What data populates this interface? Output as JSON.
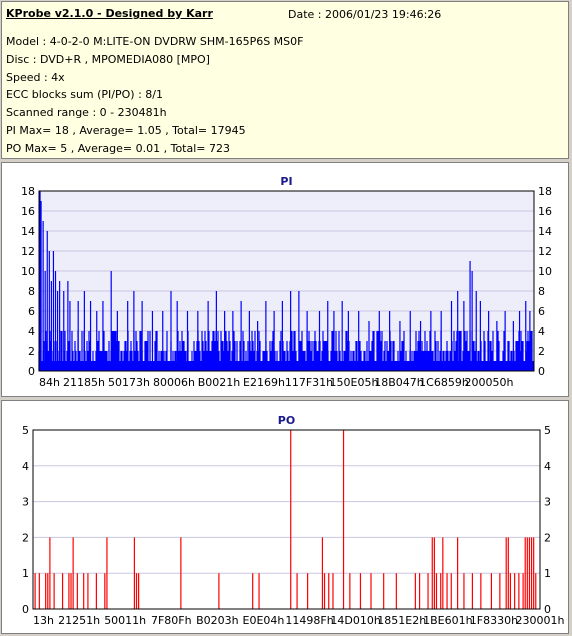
{
  "info": {
    "title": "KProbe v2.1.0 - Designed by Karr",
    "date": "Date : 2006/01/23 19:46:26",
    "lines": [
      "Model : 4-0-2-0 M:LITE-ON DVDRW SHM-165P6S MS0F",
      "Disc : DVD+R , MPOMEDIA080 [MPO]",
      "Speed : 4x",
      "ECC blocks sum (PI/PO) : 8/1",
      "Scanned range : 0 - 230481h",
      "PI Max= 18 , Average= 1.05 , Total= 17945",
      "PO Max= 5 , Average= 0.01 , Total= 723"
    ]
  },
  "chart_data": [
    {
      "type": "bar",
      "title": "PI",
      "color": "#0000ff",
      "background": "#eeeefa",
      "ylim": [
        0,
        18
      ],
      "yticks": [
        0,
        2,
        4,
        6,
        8,
        10,
        12,
        14,
        16,
        18
      ],
      "xticks": [
        "84h",
        "21185h",
        "50173h",
        "80006h",
        "B0021h",
        "E2169h",
        "117F31h",
        "150E05h",
        "18B047h",
        "1C6859h",
        "200050h"
      ],
      "xlim": [
        0,
        240
      ],
      "grid": true,
      "baseline": "dense, roughly 1-4",
      "spikes": [
        {
          "x": 0.5,
          "y": 18
        },
        {
          "x": 1,
          "y": 17
        },
        {
          "x": 2,
          "y": 15
        },
        {
          "x": 3,
          "y": 10
        },
        {
          "x": 4,
          "y": 14
        },
        {
          "x": 5,
          "y": 12
        },
        {
          "x": 6,
          "y": 9
        },
        {
          "x": 7,
          "y": 12
        },
        {
          "x": 8,
          "y": 10
        },
        {
          "x": 9,
          "y": 8
        },
        {
          "x": 10,
          "y": 9
        },
        {
          "x": 12,
          "y": 8
        },
        {
          "x": 14,
          "y": 9
        },
        {
          "x": 15,
          "y": 7
        },
        {
          "x": 19,
          "y": 7
        },
        {
          "x": 22,
          "y": 8
        },
        {
          "x": 25,
          "y": 7
        },
        {
          "x": 28,
          "y": 6
        },
        {
          "x": 31,
          "y": 7
        },
        {
          "x": 35,
          "y": 10
        },
        {
          "x": 38,
          "y": 6
        },
        {
          "x": 43,
          "y": 7
        },
        {
          "x": 46,
          "y": 8
        },
        {
          "x": 50,
          "y": 7
        },
        {
          "x": 55,
          "y": 6
        },
        {
          "x": 60,
          "y": 6
        },
        {
          "x": 64,
          "y": 8
        },
        {
          "x": 67,
          "y": 7
        },
        {
          "x": 72,
          "y": 6
        },
        {
          "x": 77,
          "y": 6
        },
        {
          "x": 82,
          "y": 7
        },
        {
          "x": 86,
          "y": 8
        },
        {
          "x": 90,
          "y": 6
        },
        {
          "x": 94,
          "y": 6
        },
        {
          "x": 98,
          "y": 7
        },
        {
          "x": 102,
          "y": 6
        },
        {
          "x": 106,
          "y": 5
        },
        {
          "x": 110,
          "y": 7
        },
        {
          "x": 114,
          "y": 6
        },
        {
          "x": 118,
          "y": 7
        },
        {
          "x": 122,
          "y": 8
        },
        {
          "x": 126,
          "y": 8
        },
        {
          "x": 130,
          "y": 6
        },
        {
          "x": 136,
          "y": 6
        },
        {
          "x": 140,
          "y": 7
        },
        {
          "x": 143,
          "y": 6
        },
        {
          "x": 147,
          "y": 7
        },
        {
          "x": 150,
          "y": 6
        },
        {
          "x": 155,
          "y": 6
        },
        {
          "x": 160,
          "y": 5
        },
        {
          "x": 165,
          "y": 6
        },
        {
          "x": 170,
          "y": 6
        },
        {
          "x": 175,
          "y": 5
        },
        {
          "x": 180,
          "y": 6
        },
        {
          "x": 185,
          "y": 5
        },
        {
          "x": 190,
          "y": 6
        },
        {
          "x": 195,
          "y": 6
        },
        {
          "x": 200,
          "y": 7
        },
        {
          "x": 203,
          "y": 8
        },
        {
          "x": 206,
          "y": 7
        },
        {
          "x": 209,
          "y": 11
        },
        {
          "x": 210,
          "y": 10
        },
        {
          "x": 212,
          "y": 8
        },
        {
          "x": 214,
          "y": 7
        },
        {
          "x": 218,
          "y": 6
        },
        {
          "x": 222,
          "y": 5
        },
        {
          "x": 226,
          "y": 6
        },
        {
          "x": 230,
          "y": 5
        },
        {
          "x": 233,
          "y": 6
        },
        {
          "x": 236,
          "y": 7
        },
        {
          "x": 238,
          "y": 6
        }
      ]
    },
    {
      "type": "bar",
      "title": "PO",
      "color": "#ff0000",
      "background": "#ffffff",
      "ylim": [
        0,
        5
      ],
      "yticks": [
        0,
        1,
        2,
        3,
        4,
        5
      ],
      "xticks": [
        "13h",
        "21251h",
        "50011h",
        "7F80Fh",
        "B0203h",
        "E0E04h",
        "11498Fh",
        "14D010h",
        "1851E2h",
        "1BE601h",
        "1F8330h",
        "230001h"
      ],
      "xlim": [
        0,
        240
      ],
      "grid": true,
      "points": [
        {
          "x": 1,
          "y": 1
        },
        {
          "x": 3,
          "y": 1
        },
        {
          "x": 6,
          "y": 1
        },
        {
          "x": 7,
          "y": 1
        },
        {
          "x": 8,
          "y": 2
        },
        {
          "x": 10,
          "y": 1
        },
        {
          "x": 14,
          "y": 1
        },
        {
          "x": 17,
          "y": 1
        },
        {
          "x": 18,
          "y": 1
        },
        {
          "x": 19,
          "y": 2
        },
        {
          "x": 21,
          "y": 1
        },
        {
          "x": 24,
          "y": 1
        },
        {
          "x": 26,
          "y": 1
        },
        {
          "x": 30,
          "y": 1
        },
        {
          "x": 34,
          "y": 1
        },
        {
          "x": 35,
          "y": 2
        },
        {
          "x": 48,
          "y": 2
        },
        {
          "x": 49,
          "y": 1
        },
        {
          "x": 50,
          "y": 1
        },
        {
          "x": 70,
          "y": 2
        },
        {
          "x": 88,
          "y": 1
        },
        {
          "x": 104,
          "y": 1
        },
        {
          "x": 107,
          "y": 1
        },
        {
          "x": 122,
          "y": 5
        },
        {
          "x": 125,
          "y": 1
        },
        {
          "x": 130,
          "y": 1
        },
        {
          "x": 137,
          "y": 2
        },
        {
          "x": 138,
          "y": 1
        },
        {
          "x": 140,
          "y": 1
        },
        {
          "x": 142,
          "y": 1
        },
        {
          "x": 147,
          "y": 5
        },
        {
          "x": 150,
          "y": 1
        },
        {
          "x": 155,
          "y": 1
        },
        {
          "x": 160,
          "y": 1
        },
        {
          "x": 166,
          "y": 1
        },
        {
          "x": 172,
          "y": 1
        },
        {
          "x": 181,
          "y": 1
        },
        {
          "x": 183,
          "y": 1
        },
        {
          "x": 187,
          "y": 1
        },
        {
          "x": 189,
          "y": 2
        },
        {
          "x": 190,
          "y": 2
        },
        {
          "x": 191,
          "y": 1
        },
        {
          "x": 193,
          "y": 1
        },
        {
          "x": 194,
          "y": 2
        },
        {
          "x": 196,
          "y": 1
        },
        {
          "x": 198,
          "y": 1
        },
        {
          "x": 201,
          "y": 2
        },
        {
          "x": 204,
          "y": 1
        },
        {
          "x": 208,
          "y": 1
        },
        {
          "x": 212,
          "y": 1
        },
        {
          "x": 217,
          "y": 1
        },
        {
          "x": 221,
          "y": 1
        },
        {
          "x": 224,
          "y": 2
        },
        {
          "x": 225,
          "y": 2
        },
        {
          "x": 226,
          "y": 1
        },
        {
          "x": 228,
          "y": 1
        },
        {
          "x": 230,
          "y": 1
        },
        {
          "x": 232,
          "y": 1
        },
        {
          "x": 233,
          "y": 2
        },
        {
          "x": 234,
          "y": 2
        },
        {
          "x": 235,
          "y": 2
        },
        {
          "x": 236,
          "y": 2
        },
        {
          "x": 237,
          "y": 2
        },
        {
          "x": 238,
          "y": 1
        }
      ]
    }
  ]
}
